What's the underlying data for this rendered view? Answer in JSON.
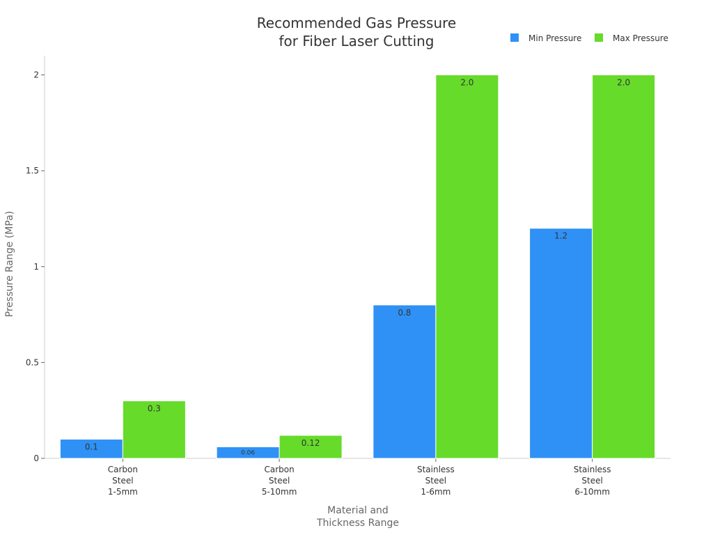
{
  "chart_data": {
    "type": "bar",
    "title": [
      "Recommended Gas Pressure",
      "for Fiber Laser Cutting"
    ],
    "xlabel": [
      "Material and",
      "Thickness Range"
    ],
    "ylabel": "Pressure Range (MPa)",
    "ylim": [
      0,
      2.1
    ],
    "yticks": [
      0,
      0.5,
      1,
      1.5,
      2
    ],
    "ytick_labels": [
      "0",
      "0.5",
      "1",
      "1.5",
      "2"
    ],
    "grid": false,
    "legend_position": "top-right",
    "categories": [
      [
        "Carbon",
        "Steel",
        "1-5mm"
      ],
      [
        "Carbon",
        "Steel",
        "5-10mm"
      ],
      [
        "Stainless",
        "Steel",
        "1-6mm"
      ],
      [
        "Stainless",
        "Steel",
        "6-10mm"
      ]
    ],
    "series": [
      {
        "name": "Min Pressure",
        "color": "#2f91f5",
        "values": [
          0.1,
          0.06,
          0.8,
          1.2
        ],
        "labels": [
          "0.1",
          "0.06",
          "0.8",
          "1.2"
        ]
      },
      {
        "name": "Max Pressure",
        "color": "#66db2a",
        "values": [
          0.3,
          0.12,
          2.0,
          2.0
        ],
        "labels": [
          "0.3",
          "0.12",
          "2.0",
          "2.0"
        ]
      }
    ]
  }
}
